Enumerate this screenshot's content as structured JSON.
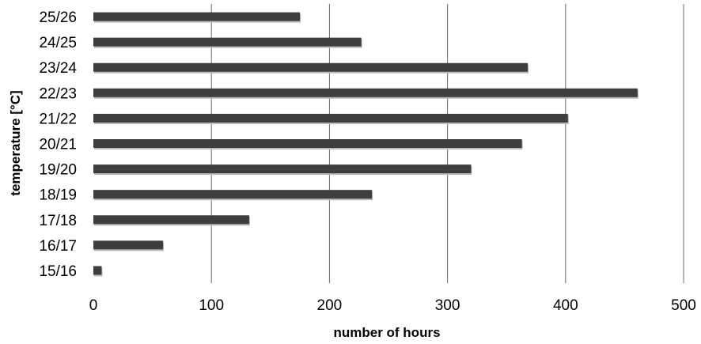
{
  "chart_data": {
    "type": "bar",
    "orientation": "horizontal",
    "categories": [
      "15/16",
      "16/17",
      "17/18",
      "18/19",
      "19/20",
      "20/21",
      "21/22",
      "22/23",
      "23/24",
      "24/25",
      "25/26"
    ],
    "values": [
      7,
      59,
      132,
      236,
      320,
      363,
      402,
      461,
      368,
      227,
      175
    ],
    "xlabel": "number of hours",
    "ylabel": "temperature [°C]",
    "xlim": [
      0,
      500
    ],
    "xticks": [
      0,
      100,
      200,
      300,
      400,
      500
    ],
    "grid": "vertical",
    "legend": "none",
    "colors": {
      "bar": "#3e3e3e",
      "grid": "#6a6a6a"
    }
  }
}
